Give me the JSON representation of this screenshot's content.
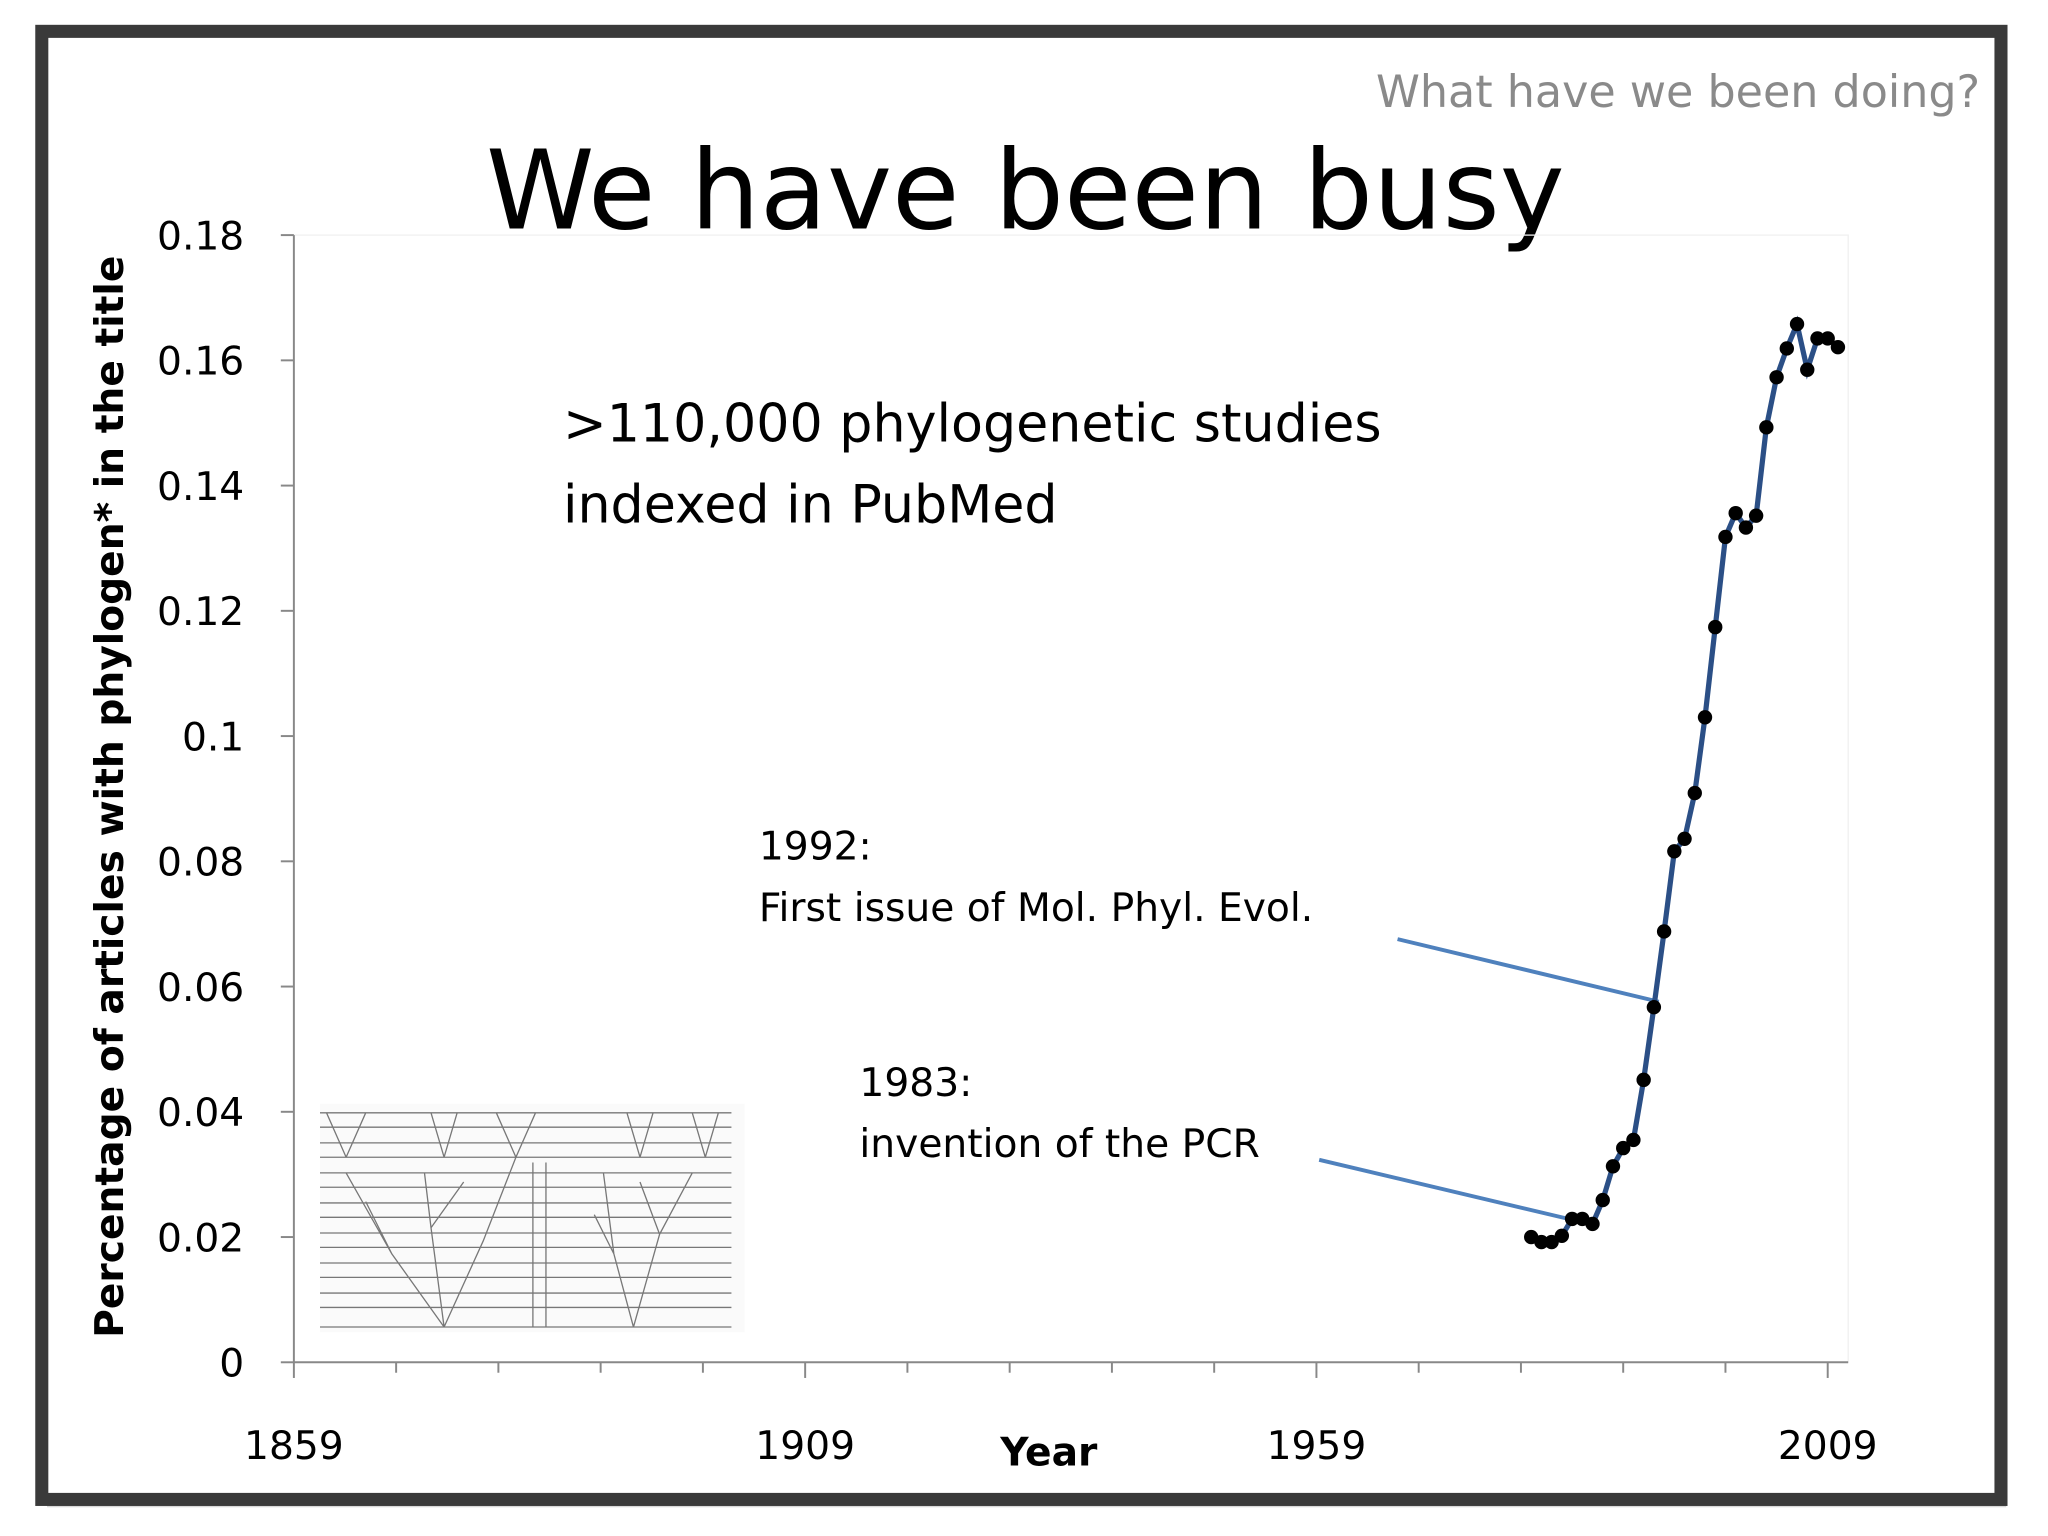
{
  "header": "What have we been doing?",
  "chart_data": {
    "type": "line",
    "title": "We have been busy",
    "x_label": "Year",
    "y_label": "Percentage of articles with phylogen* in the title",
    "x": [
      1980,
      1981,
      1982,
      1983,
      1984,
      1985,
      1986,
      1987,
      1988,
      1989,
      1990,
      1991,
      1992,
      1993,
      1994,
      1995,
      1996,
      1997,
      1998,
      1999,
      2000,
      2001,
      2002,
      2003,
      2004,
      2005,
      2006,
      2007,
      2008,
      2009,
      2010
    ],
    "series": [
      {
        "color": "#2b4f86",
        "values": [
          0.02,
          0.0192,
          0.0192,
          0.0202,
          0.0229,
          0.0229,
          0.0221,
          0.0259,
          0.0313,
          0.0342,
          0.0355,
          0.0451,
          0.0567,
          0.0688,
          0.0816,
          0.0836,
          0.0909,
          0.103,
          0.1174,
          0.1318,
          0.1356,
          0.1333,
          0.1352,
          0.1493,
          0.1573,
          0.1619,
          0.1658,
          0.1585,
          0.1635,
          0.1635,
          0.1621
        ]
      }
    ],
    "xlim": [
      1859,
      2011
    ],
    "xticks": [
      1859,
      1909,
      1959,
      2009
    ],
    "ylim": [
      0,
      0.18
    ],
    "yticks": [
      0,
      0.02,
      0.04,
      0.06,
      0.08,
      0.1,
      0.12,
      0.14,
      0.16,
      0.18
    ],
    "annotations": [
      {
        "text": [
          ">110,000 phylogenetic studies",
          "indexed in PubMed"
        ]
      },
      {
        "text": [
          "1992:",
          "First issue of Mol. Phyl. Evol."
        ]
      },
      {
        "text": [
          "1983:",
          "invention of the PCR"
        ]
      }
    ]
  }
}
